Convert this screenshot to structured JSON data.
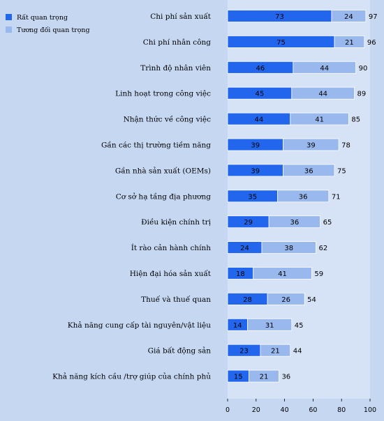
{
  "chart_data": {
    "type": "bar",
    "orientation": "horizontal",
    "stacked": true,
    "categories": [
      "Chi phí sản xuất",
      "Chi phí nhân công",
      "Trình độ nhân viên",
      "Linh hoạt trong công việc",
      "Nhận thức về công việc",
      "Gần các thị trường tiềm năng",
      "Gần nhà sản xuất  (OEMs)",
      "Cơ sở hạ tầng địa phương",
      "Điều kiện chính trị",
      "Ít rào cản hành chính",
      "Hiện đại hóa sản xuất",
      "Thuế và thuế quan",
      "Khả năng cung cấp tài nguyên/vật liệu",
      "Giá bất động sản",
      "Khả năng kích cầu /trợ giúp của chính phủ"
    ],
    "series": [
      {
        "name": "Rất quan trọng",
        "color": "#2266ee",
        "values": [
          73,
          75,
          46,
          45,
          44,
          39,
          39,
          35,
          29,
          24,
          18,
          28,
          14,
          23,
          15
        ]
      },
      {
        "name": "Tương đối quan trọng",
        "color": "#99b8ee",
        "values": [
          24,
          21,
          44,
          44,
          41,
          39,
          36,
          36,
          36,
          38,
          41,
          26,
          31,
          21,
          21
        ]
      }
    ],
    "totals": [
      97,
      96,
      90,
      89,
      85,
      78,
      75,
      71,
      65,
      62,
      59,
      54,
      45,
      44,
      36
    ],
    "xlim": [
      0,
      100
    ],
    "xticks": [
      0,
      20,
      40,
      60,
      80,
      100
    ],
    "legend_position": "top-left",
    "grid": false,
    "plot_background": "#d6e2f5",
    "page_background": "#c6d7f2"
  }
}
